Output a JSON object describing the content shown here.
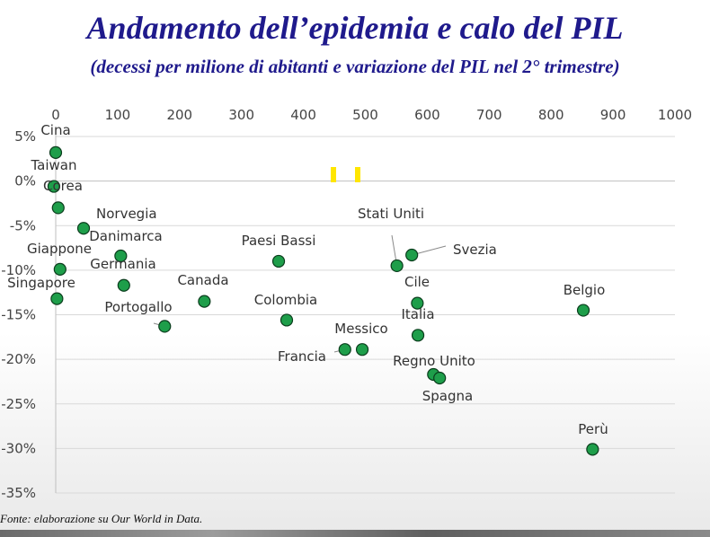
{
  "title": "Andamento dell’epidemia e calo del PIL",
  "subtitle": "(decessi per milione di abitanti e variazione del PIL nel 2° trimestre)",
  "source": "Fonte: elaborazione su Our World in Data.",
  "chart_data": {
    "type": "scatter",
    "xlim": [
      0,
      1000
    ],
    "ylim": [
      -35,
      5
    ],
    "x_ticks": [
      "0",
      "100",
      "200",
      "300",
      "400",
      "500",
      "600",
      "700",
      "800",
      "900",
      "1000"
    ],
    "y_ticks": [
      "5%",
      "0%",
      "-5%",
      "-10%",
      "-15%",
      "-20%",
      "-25%",
      "-30%",
      "-35%"
    ],
    "grid": "horizontal",
    "marker_color": "#1e9e4a",
    "points": [
      {
        "label": "Cina",
        "x": 0,
        "y": 3.2
      },
      {
        "label": "Taiwan",
        "x": -3,
        "y": -0.6
      },
      {
        "label": "Corea",
        "x": 4,
        "y": -3.0
      },
      {
        "label": "Norvegia",
        "x": 45,
        "y": -5.3
      },
      {
        "label": "Danimarca",
        "x": 105,
        "y": -8.4
      },
      {
        "label": "Giappone",
        "x": 7,
        "y": -9.9
      },
      {
        "label": "Germania",
        "x": 110,
        "y": -11.7
      },
      {
        "label": "Singapore",
        "x": 2,
        "y": -13.2
      },
      {
        "label": "Portogallo",
        "x": 176,
        "y": -16.3
      },
      {
        "label": "Canada",
        "x": 240,
        "y": -13.5
      },
      {
        "label": "Paesi Bassi",
        "x": 360,
        "y": -9.0
      },
      {
        "label": "Colombia",
        "x": 373,
        "y": -15.6
      },
      {
        "label": "Francia",
        "x": 467,
        "y": -18.9
      },
      {
        "label": "Messico",
        "x": 495,
        "y": -18.9
      },
      {
        "label": "Stati Uniti",
        "x": 551,
        "y": -9.5
      },
      {
        "label": "Svezia",
        "x": 575,
        "y": -8.3
      },
      {
        "label": "Cile",
        "x": 584,
        "y": -13.7
      },
      {
        "label": "Italia",
        "x": 585,
        "y": -17.3
      },
      {
        "label": "Regno Unito",
        "x": 610,
        "y": -21.7
      },
      {
        "label": "Spagna",
        "x": 620,
        "y": -22.1
      },
      {
        "label": "Belgio",
        "x": 852,
        "y": -14.5
      },
      {
        "label": "Perù",
        "x": 867,
        "y": -30.1
      }
    ]
  }
}
